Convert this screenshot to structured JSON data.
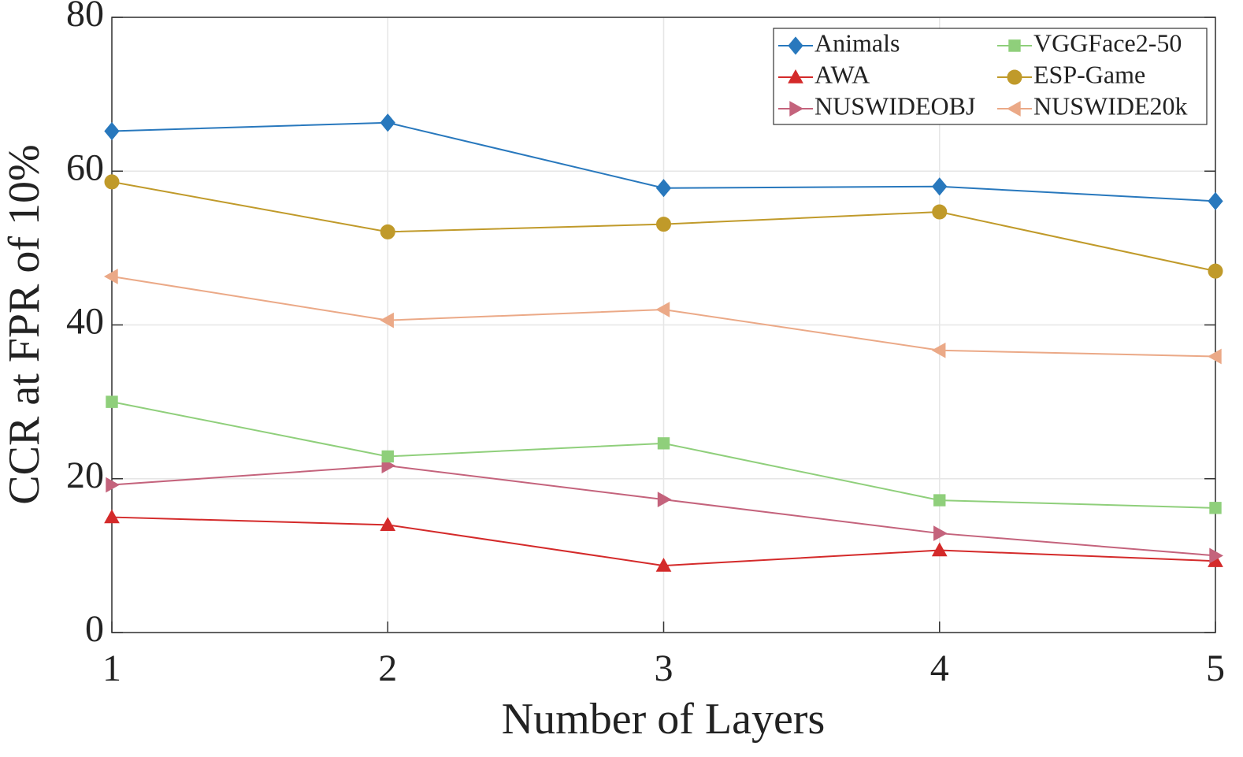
{
  "chart_data": {
    "type": "line",
    "x_label": "Number of Layers",
    "y_label": "CCR at FPR of 10%",
    "x": [
      1,
      2,
      3,
      4,
      5
    ],
    "xlim": [
      1,
      5
    ],
    "xticks": [
      1,
      2,
      3,
      4,
      5
    ],
    "ylim": [
      0,
      80
    ],
    "yticks": [
      0,
      20,
      40,
      60,
      80
    ],
    "grid": true,
    "legend": "upper right",
    "legend_columns": 2,
    "series": [
      {
        "name": "Animals",
        "color": "#2878bd",
        "marker": "diamond",
        "values": [
          65.2,
          66.3,
          57.8,
          58.0,
          56.1
        ]
      },
      {
        "name": "AWA",
        "color": "#d42a2a",
        "marker": "triangle-up",
        "values": [
          15.0,
          14.0,
          8.7,
          10.7,
          9.3
        ]
      },
      {
        "name": "NUSWIDEOBJ",
        "color": "#c4637c",
        "marker": "triangle-right",
        "values": [
          19.2,
          21.7,
          17.3,
          12.9,
          10.0
        ]
      },
      {
        "name": "VGGFace2-50",
        "color": "#8fcf7b",
        "marker": "square",
        "values": [
          30.0,
          22.9,
          24.6,
          17.2,
          16.2
        ]
      },
      {
        "name": "ESP-Game",
        "color": "#c09a2a",
        "marker": "circle",
        "values": [
          58.6,
          52.1,
          53.1,
          54.7,
          47.0
        ]
      },
      {
        "name": "NUSWIDE20k",
        "color": "#eba987",
        "marker": "triangle-left",
        "values": [
          46.3,
          40.6,
          42.0,
          36.7,
          35.9
        ]
      }
    ]
  }
}
